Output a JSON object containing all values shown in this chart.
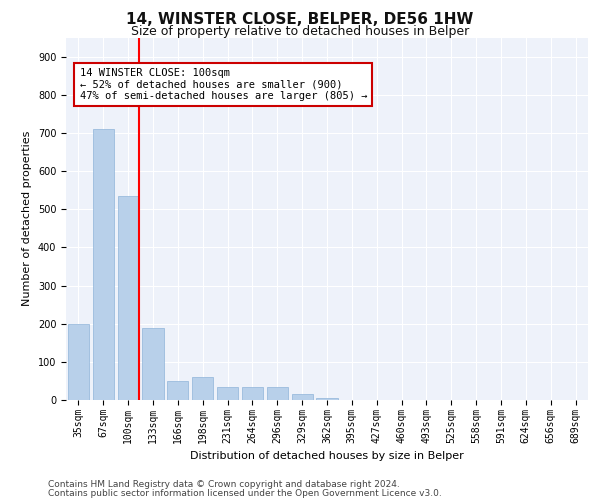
{
  "title": "14, WINSTER CLOSE, BELPER, DE56 1HW",
  "subtitle": "Size of property relative to detached houses in Belper",
  "xlabel": "Distribution of detached houses by size in Belper",
  "ylabel": "Number of detached properties",
  "categories": [
    "35sqm",
    "67sqm",
    "100sqm",
    "133sqm",
    "166sqm",
    "198sqm",
    "231sqm",
    "264sqm",
    "296sqm",
    "329sqm",
    "362sqm",
    "395sqm",
    "427sqm",
    "460sqm",
    "493sqm",
    "525sqm",
    "558sqm",
    "591sqm",
    "624sqm",
    "656sqm",
    "689sqm"
  ],
  "values": [
    200,
    710,
    535,
    190,
    50,
    60,
    35,
    35,
    35,
    15,
    5,
    0,
    0,
    0,
    0,
    0,
    0,
    0,
    0,
    0,
    0
  ],
  "bar_color": "#b8d0ea",
  "bar_edge_color": "#8fb4d9",
  "red_line_index": 2,
  "ylim": [
    0,
    950
  ],
  "yticks": [
    0,
    100,
    200,
    300,
    400,
    500,
    600,
    700,
    800,
    900
  ],
  "annotation_text": "14 WINSTER CLOSE: 100sqm\n← 52% of detached houses are smaller (900)\n47% of semi-detached houses are larger (805) →",
  "annotation_box_color": "#ffffff",
  "annotation_box_edge_color": "#cc0000",
  "footer_line1": "Contains HM Land Registry data © Crown copyright and database right 2024.",
  "footer_line2": "Contains public sector information licensed under the Open Government Licence v3.0.",
  "background_color": "#ffffff",
  "plot_bg_color": "#eef2fa",
  "grid_color": "#ffffff",
  "title_fontsize": 11,
  "subtitle_fontsize": 9,
  "axis_label_fontsize": 8,
  "tick_fontsize": 7,
  "annotation_fontsize": 7.5,
  "footer_fontsize": 6.5
}
